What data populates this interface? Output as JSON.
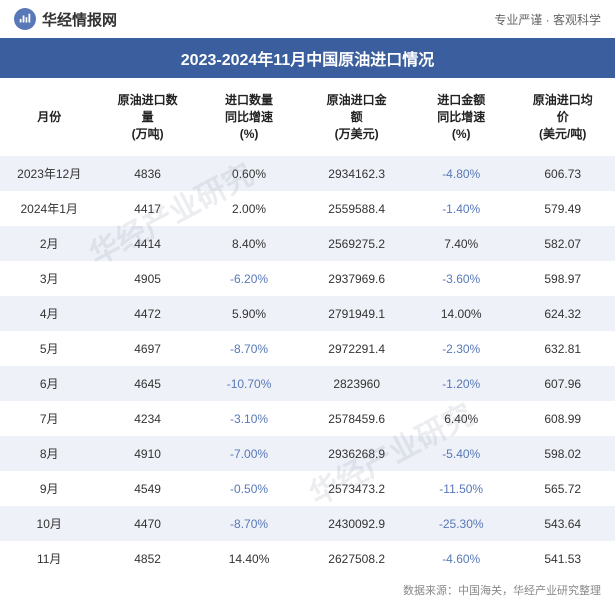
{
  "header": {
    "site_name": "华经情报网",
    "tagline": "专业严谨 · 客观科学"
  },
  "title": "2023-2024年11月中国原油进口情况",
  "columns": [
    "月份",
    "原油进口数\n量\n(万吨)",
    "进口数量\n同比增速\n(%)",
    "原油进口金\n额\n(万美元)",
    "进口金额\n同比增速\n(%)",
    "原油进口均\n价\n(美元/吨)"
  ],
  "col_widths": [
    "16%",
    "16%",
    "17%",
    "18%",
    "16%",
    "17%"
  ],
  "rows": [
    {
      "month": "2023年12月",
      "vol": "4836",
      "vol_g": "0.60%",
      "vol_g_neg": false,
      "amt": "2934162.3",
      "amt_g": "-4.80%",
      "amt_g_neg": true,
      "price": "606.73"
    },
    {
      "month": "2024年1月",
      "vol": "4417",
      "vol_g": "2.00%",
      "vol_g_neg": false,
      "amt": "2559588.4",
      "amt_g": "-1.40%",
      "amt_g_neg": true,
      "price": "579.49"
    },
    {
      "month": "2月",
      "vol": "4414",
      "vol_g": "8.40%",
      "vol_g_neg": false,
      "amt": "2569275.2",
      "amt_g": "7.40%",
      "amt_g_neg": false,
      "price": "582.07"
    },
    {
      "month": "3月",
      "vol": "4905",
      "vol_g": "-6.20%",
      "vol_g_neg": true,
      "amt": "2937969.6",
      "amt_g": "-3.60%",
      "amt_g_neg": true,
      "price": "598.97"
    },
    {
      "month": "4月",
      "vol": "4472",
      "vol_g": "5.90%",
      "vol_g_neg": false,
      "amt": "2791949.1",
      "amt_g": "14.00%",
      "amt_g_neg": false,
      "price": "624.32"
    },
    {
      "month": "5月",
      "vol": "4697",
      "vol_g": "-8.70%",
      "vol_g_neg": true,
      "amt": "2972291.4",
      "amt_g": "-2.30%",
      "amt_g_neg": true,
      "price": "632.81"
    },
    {
      "month": "6月",
      "vol": "4645",
      "vol_g": "-10.70%",
      "vol_g_neg": true,
      "amt": "2823960",
      "amt_g": "-1.20%",
      "amt_g_neg": true,
      "price": "607.96"
    },
    {
      "month": "7月",
      "vol": "4234",
      "vol_g": "-3.10%",
      "vol_g_neg": true,
      "amt": "2578459.6",
      "amt_g": "6.40%",
      "amt_g_neg": false,
      "price": "608.99"
    },
    {
      "month": "8月",
      "vol": "4910",
      "vol_g": "-7.00%",
      "vol_g_neg": true,
      "amt": "2936268.9",
      "amt_g": "-5.40%",
      "amt_g_neg": true,
      "price": "598.02"
    },
    {
      "month": "9月",
      "vol": "4549",
      "vol_g": "-0.50%",
      "vol_g_neg": true,
      "amt": "2573473.2",
      "amt_g": "-11.50%",
      "amt_g_neg": true,
      "price": "565.72"
    },
    {
      "month": "10月",
      "vol": "4470",
      "vol_g": "-8.70%",
      "vol_g_neg": true,
      "amt": "2430092.9",
      "amt_g": "-25.30%",
      "amt_g_neg": true,
      "price": "543.64"
    },
    {
      "month": "11月",
      "vol": "4852",
      "vol_g": "14.40%",
      "vol_g_neg": false,
      "amt": "2627508.2",
      "amt_g": "-4.60%",
      "amt_g_neg": true,
      "price": "541.53"
    }
  ],
  "source": "数据来源：中国海关，华经产业研究整理",
  "watermark": "华经产业研究",
  "colors": {
    "title_bg": "#3b5e9e",
    "stripe_bg": "#eef1f7",
    "negative_text": "#5878b8",
    "normal_text": "#333333"
  },
  "website": "www.huaon.com"
}
